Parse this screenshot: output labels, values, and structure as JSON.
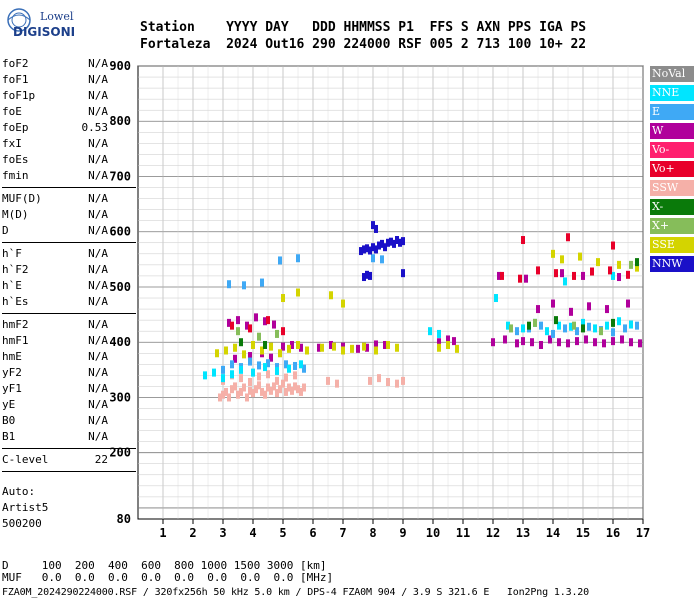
{
  "logo": {
    "line1": "Lowell",
    "line2": "DIGISONDE"
  },
  "header": {
    "labels": "Station    YYYY DAY   DDD HHMMSS P1  FFS S AXN PPS IGA PS",
    "values": "Fortaleza  2024 Out16 290 224000 RSF 005 2 713 100 10+ 22"
  },
  "params_group1": [
    {
      "k": "foF2",
      "v": "N/A"
    },
    {
      "k": "foF1",
      "v": "N/A"
    },
    {
      "k": "foF1p",
      "v": "N/A"
    },
    {
      "k": "foE",
      "v": "N/A"
    },
    {
      "k": "foEp",
      "v": "0.53"
    },
    {
      "k": "fxI",
      "v": "N/A"
    },
    {
      "k": "foEs",
      "v": "N/A"
    },
    {
      "k": "fmin",
      "v": "N/A"
    }
  ],
  "params_group2": [
    {
      "k": "MUF(D)",
      "v": "N/A"
    },
    {
      "k": "M(D)",
      "v": "N/A"
    },
    {
      "k": "D",
      "v": "N/A"
    }
  ],
  "params_group3": [
    {
      "k": "h`F",
      "v": "N/A"
    },
    {
      "k": "h`F2",
      "v": "N/A"
    },
    {
      "k": "h`E",
      "v": "N/A"
    },
    {
      "k": "h`Es",
      "v": "N/A"
    }
  ],
  "params_group4": [
    {
      "k": "hmF2",
      "v": "N/A"
    },
    {
      "k": "hmF1",
      "v": "N/A"
    },
    {
      "k": "hmE",
      "v": "N/A"
    },
    {
      "k": "yF2",
      "v": "N/A"
    },
    {
      "k": "yF1",
      "v": "N/A"
    },
    {
      "k": "yE",
      "v": "N/A"
    },
    {
      "k": "B0",
      "v": "N/A"
    },
    {
      "k": "B1",
      "v": "N/A"
    }
  ],
  "clevel": {
    "k": "C-level",
    "v": "22"
  },
  "auto": {
    "line1": "Auto:",
    "line2": "Artist5",
    "line3": "500200"
  },
  "bottom": {
    "d_line": "D     100  200  400  600  800 1000 1500 3000 [km]",
    "muf_line": "MUF   0.0  0.0  0.0  0.0  0.0  0.0  0.0  0.0 [MHz]",
    "footer": "FZA0M_2024290224000.RSF / 320fx256h 50 kHz 5.0 km / DPS-4 FZA0M 904 / 3.9 S 321.6 E   Ion2Png 1.3.20"
  },
  "legend": [
    {
      "label": "NoVal",
      "color": "#8c8c8c"
    },
    {
      "label": "NNE",
      "color": "#00e5ff"
    },
    {
      "label": "E",
      "color": "#3fa9f5"
    },
    {
      "label": "W",
      "color": "#b0009b"
    },
    {
      "label": "Vo-",
      "color": "#ff1f6e"
    },
    {
      "label": "Vo+",
      "color": "#e8002a"
    },
    {
      "label": "SSW",
      "color": "#f5b0a8"
    },
    {
      "label": "X-",
      "color": "#0a7a0a"
    },
    {
      "label": "X+",
      "color": "#86bd5a"
    },
    {
      "label": "SSE",
      "color": "#d4d400"
    },
    {
      "label": "NNW",
      "color": "#1a10c8"
    }
  ],
  "chart_data": {
    "type": "scatter",
    "xlim": [
      0.5,
      17
    ],
    "ylim": [
      80,
      900
    ],
    "xticks": [
      1,
      2,
      3,
      4,
      5,
      6,
      7,
      8,
      9,
      10,
      11,
      12,
      13,
      14,
      15,
      16,
      17
    ],
    "yticks": [
      80,
      200,
      300,
      400,
      500,
      600,
      700,
      800,
      900
    ],
    "grid": true,
    "legend_position": "right",
    "series": [
      {
        "name": "SSW",
        "color": "#f5b0a8",
        "x": [
          2.9,
          3.0,
          3.1,
          3.2,
          3.3,
          3.4,
          3.5,
          3.6,
          3.7,
          3.8,
          3.9,
          4.0,
          4.1,
          4.2,
          4.3,
          4.4,
          4.5,
          4.6,
          4.7,
          4.8,
          4.9,
          5.0,
          5.1,
          5.2,
          5.3,
          5.4,
          5.5,
          5.6,
          5.7,
          3.0,
          3.3,
          3.6,
          3.9,
          4.2,
          4.5,
          4.8,
          5.1,
          5.4,
          6.5,
          6.8,
          7.9,
          8.2,
          8.5,
          8.8,
          9.0
        ],
        "y": [
          300,
          305,
          310,
          300,
          315,
          320,
          305,
          310,
          318,
          300,
          312,
          308,
          315,
          322,
          310,
          305,
          318,
          312,
          320,
          308,
          315,
          325,
          310,
          318,
          312,
          320,
          315,
          310,
          318,
          330,
          340,
          335,
          328,
          338,
          342,
          330,
          336,
          340,
          330,
          325,
          330,
          335,
          328,
          325,
          330
        ]
      },
      {
        "name": "W",
        "color": "#b0009b",
        "x": [
          3.2,
          3.5,
          3.8,
          4.1,
          4.4,
          4.7,
          5.0,
          5.3,
          5.6,
          3.4,
          3.9,
          4.3,
          4.6,
          6.2,
          6.6,
          7.0,
          7.5,
          7.8,
          8.1,
          8.4,
          10.2,
          10.5,
          10.7,
          12.0,
          12.4,
          12.8,
          13.0,
          13.3,
          13.6,
          13.9,
          14.2,
          14.5,
          14.8,
          15.1,
          15.4,
          15.7,
          16.0,
          16.3,
          16.6,
          16.9,
          13.5,
          14.0,
          14.6,
          15.2,
          15.8,
          16.5,
          12.2,
          13.1,
          14.3,
          15.0,
          16.2
        ],
        "y": [
          435,
          440,
          430,
          445,
          438,
          432,
          392,
          395,
          390,
          370,
          375,
          380,
          372,
          390,
          395,
          392,
          388,
          390,
          396,
          395,
          400,
          405,
          402,
          400,
          405,
          398,
          402,
          400,
          395,
          405,
          400,
          398,
          402,
          405,
          400,
          398,
          402,
          405,
          400,
          398,
          460,
          470,
          455,
          465,
          460,
          470,
          520,
          515,
          525,
          520,
          518
        ]
      },
      {
        "name": "E",
        "color": "#3fa9f5",
        "x": [
          3.0,
          3.3,
          3.6,
          3.9,
          4.2,
          4.5,
          4.8,
          5.1,
          5.4,
          5.7,
          3.2,
          3.7,
          4.3,
          4.9,
          5.5,
          8.0,
          8.3,
          12.8,
          13.2,
          13.6,
          14.0,
          14.4,
          14.8,
          15.2,
          15.6,
          16.0,
          16.4,
          16.8
        ],
        "y": [
          350,
          360,
          355,
          365,
          358,
          362,
          355,
          360,
          357,
          352,
          505,
          503,
          508,
          548,
          552,
          552,
          550,
          420,
          425,
          430,
          415,
          425,
          420,
          428,
          422,
          418,
          425,
          430
        ]
      },
      {
        "name": "NNE",
        "color": "#00e5ff",
        "x": [
          2.4,
          2.7,
          3.0,
          3.3,
          3.6,
          4.0,
          4.4,
          4.8,
          5.2,
          5.6,
          9.9,
          10.2,
          12.5,
          13.0,
          13.4,
          13.8,
          14.2,
          14.6,
          15.0,
          15.4,
          15.8,
          16.2,
          16.6,
          12.1,
          14.4,
          16.0
        ],
        "y": [
          340,
          345,
          335,
          342,
          350,
          345,
          355,
          348,
          352,
          360,
          420,
          415,
          430,
          425,
          435,
          420,
          430,
          428,
          435,
          425,
          430,
          438,
          432,
          480,
          510,
          520
        ]
      },
      {
        "name": "SSE",
        "color": "#d4d400",
        "x": [
          2.8,
          3.1,
          3.4,
          3.7,
          4.0,
          4.3,
          4.6,
          4.9,
          5.2,
          5.5,
          5.8,
          6.3,
          6.7,
          7.0,
          7.3,
          7.7,
          8.1,
          8.5,
          8.8,
          10.2,
          10.5,
          10.8,
          14.0,
          14.3,
          14.9,
          15.5,
          16.2,
          16.8,
          5.0,
          5.5,
          6.6,
          7.0
        ],
        "y": [
          380,
          385,
          390,
          378,
          395,
          385,
          392,
          380,
          388,
          395,
          385,
          390,
          392,
          385,
          388,
          392,
          385,
          395,
          390,
          390,
          395,
          388,
          560,
          550,
          555,
          545,
          540,
          535,
          480,
          490,
          485,
          470
        ]
      },
      {
        "name": "NNW",
        "color": "#1a10c8",
        "x": [
          7.6,
          7.7,
          7.8,
          7.9,
          8.0,
          8.1,
          8.2,
          8.3,
          8.4,
          8.5,
          8.6,
          8.7,
          8.8,
          8.9,
          9.0,
          8.0,
          8.1,
          7.9,
          7.8,
          7.7,
          9.0
        ],
        "y": [
          565,
          568,
          570,
          566,
          572,
          568,
          575,
          578,
          572,
          580,
          582,
          578,
          585,
          580,
          583,
          612,
          605,
          520,
          522,
          518,
          525
        ]
      },
      {
        "name": "Vo+",
        "color": "#e8002a",
        "x": [
          3.3,
          3.9,
          4.5,
          5.0,
          12.3,
          12.9,
          13.5,
          14.1,
          14.7,
          15.3,
          15.9,
          16.5,
          13.0,
          14.5,
          16.0
        ],
        "y": [
          430,
          425,
          440,
          420,
          520,
          515,
          530,
          525,
          520,
          528,
          530,
          522,
          585,
          590,
          575
        ]
      },
      {
        "name": "X-",
        "color": "#0a7a0a",
        "x": [
          3.6,
          4.4,
          13.2,
          14.1,
          15.0,
          16.0,
          16.8
        ],
        "y": [
          400,
          395,
          430,
          440,
          425,
          435,
          545
        ]
      },
      {
        "name": "X+",
        "color": "#86bd5a",
        "x": [
          3.5,
          4.2,
          4.8,
          12.6,
          13.4,
          14.7,
          15.6,
          16.6
        ],
        "y": [
          420,
          410,
          415,
          425,
          435,
          430,
          420,
          540
        ]
      }
    ]
  }
}
